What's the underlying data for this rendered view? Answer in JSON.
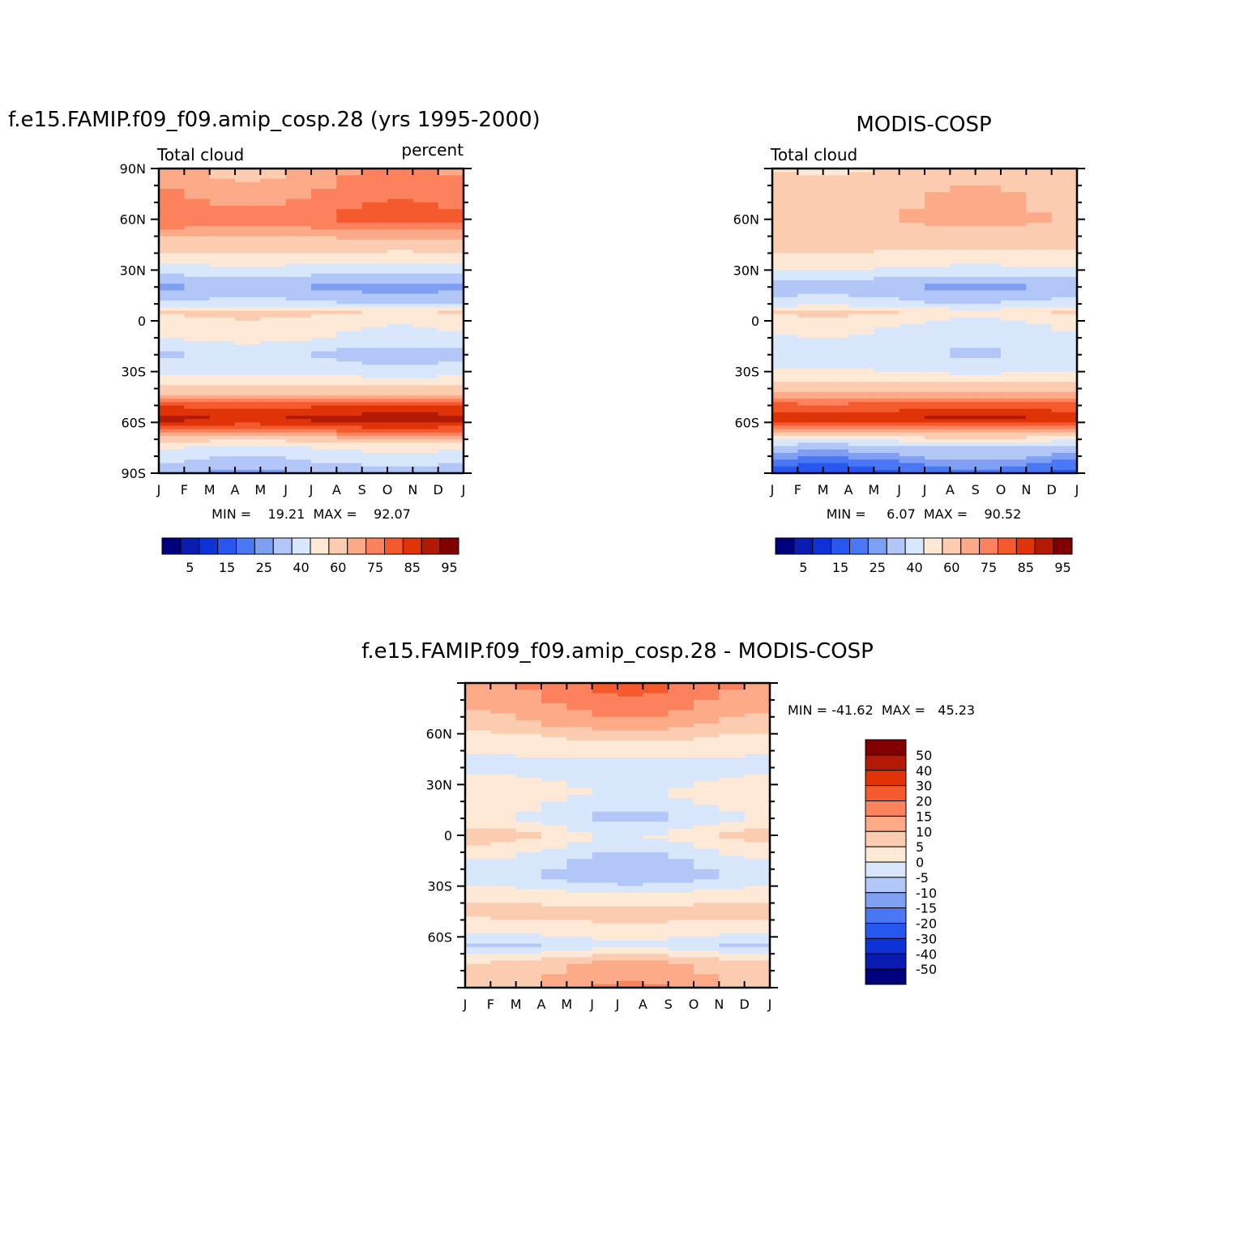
{
  "colors": {
    "seq": [
      "#00007f",
      "#0a1bb0",
      "#0d33d6",
      "#2857ef",
      "#4a78f5",
      "#7fa0f2",
      "#b2c7f7",
      "#d8e7fb",
      "#fee8d6",
      "#fcccb1",
      "#fcaa87",
      "#fb825c",
      "#f55a2f",
      "#e03408",
      "#b31a06",
      "#800000"
    ],
    "diff": [
      "#00007f",
      "#0a1bb0",
      "#0d33d6",
      "#2857ef",
      "#4a78f5",
      "#7fa0f2",
      "#b2c7f7",
      "#d8e7fb",
      "#fee8d6",
      "#fcccb1",
      "#fcaa87",
      "#fb825c",
      "#f55a2f",
      "#e03408",
      "#b31a06",
      "#800000"
    ]
  },
  "chart_data": [
    {
      "type": "heatmap",
      "title": "f.e15.FAMIP.f09_f09.amip_cosp.28 (yrs 1995-2000)",
      "left_label": "Total cloud",
      "right_label": "percent",
      "x_ticks": [
        "J",
        "F",
        "M",
        "A",
        "M",
        "J",
        "J",
        "A",
        "S",
        "O",
        "N",
        "D",
        "J"
      ],
      "y_ticks": [
        "90N",
        "60N",
        "30N",
        "0",
        "30S",
        "60S",
        "90S"
      ],
      "ylim": [
        -90,
        90
      ],
      "stats": "MIN =    19.21  MAX =    92.07",
      "colorbar_labels": [
        "5",
        "15",
        "25",
        "40",
        "60",
        "75",
        "85",
        "95"
      ],
      "levels": [
        5,
        10,
        15,
        20,
        25,
        30,
        40,
        50,
        60,
        70,
        75,
        80,
        85,
        90,
        95
      ],
      "profile": [
        {
          "lat": 90,
          "v": 72
        },
        {
          "lat": 75,
          "v": 76
        },
        {
          "lat": 60,
          "v": 80
        },
        {
          "lat": 45,
          "v": 66
        },
        {
          "lat": 30,
          "v": 45
        },
        {
          "lat": 20,
          "v": 28
        },
        {
          "lat": 10,
          "v": 42
        },
        {
          "lat": 5,
          "v": 62
        },
        {
          "lat": 0,
          "v": 55
        },
        {
          "lat": -10,
          "v": 50
        },
        {
          "lat": -20,
          "v": 38
        },
        {
          "lat": -30,
          "v": 46
        },
        {
          "lat": -40,
          "v": 63
        },
        {
          "lat": -50,
          "v": 84
        },
        {
          "lat": -58,
          "v": 92
        },
        {
          "lat": -66,
          "v": 78
        },
        {
          "lat": -75,
          "v": 50
        },
        {
          "lat": -90,
          "v": 32
        }
      ]
    },
    {
      "type": "heatmap",
      "title": "MODIS-COSP",
      "left_label": "Total cloud",
      "x_ticks": [
        "J",
        "F",
        "M",
        "A",
        "M",
        "J",
        "J",
        "A",
        "S",
        "O",
        "N",
        "D",
        "J"
      ],
      "y_ticks": [
        "60N",
        "30N",
        "0",
        "30S",
        "60S"
      ],
      "ylim": [
        -90,
        90
      ],
      "stats": "MIN =     6.07  MAX =    90.52",
      "colorbar_labels": [
        "5",
        "15",
        "25",
        "40",
        "60",
        "75",
        "85",
        "95"
      ],
      "levels": [
        5,
        10,
        15,
        20,
        25,
        30,
        40,
        50,
        60,
        70,
        75,
        80,
        85,
        90,
        95
      ],
      "profile": [
        {
          "lat": 90,
          "v": 62
        },
        {
          "lat": 75,
          "v": 68
        },
        {
          "lat": 60,
          "v": 70
        },
        {
          "lat": 45,
          "v": 64
        },
        {
          "lat": 30,
          "v": 48
        },
        {
          "lat": 20,
          "v": 30
        },
        {
          "lat": 10,
          "v": 44
        },
        {
          "lat": 5,
          "v": 60
        },
        {
          "lat": 0,
          "v": 52
        },
        {
          "lat": -10,
          "v": 46
        },
        {
          "lat": -20,
          "v": 42
        },
        {
          "lat": -30,
          "v": 50
        },
        {
          "lat": -40,
          "v": 66
        },
        {
          "lat": -50,
          "v": 82
        },
        {
          "lat": -58,
          "v": 90
        },
        {
          "lat": -66,
          "v": 70
        },
        {
          "lat": -75,
          "v": 35
        },
        {
          "lat": -90,
          "v": 18
        }
      ]
    },
    {
      "type": "heatmap",
      "title": "f.e15.FAMIP.f09_f09.amip_cosp.28 - MODIS-COSP",
      "x_ticks": [
        "J",
        "F",
        "M",
        "A",
        "M",
        "J",
        "J",
        "A",
        "S",
        "O",
        "N",
        "D",
        "J"
      ],
      "y_ticks": [
        "60N",
        "30N",
        "0",
        "30S",
        "60S"
      ],
      "ylim": [
        -90,
        90
      ],
      "stats": "MIN = -41.62  MAX =   45.23",
      "colorbar_labels": [
        "50",
        "40",
        "30",
        "20",
        "15",
        "10",
        "5",
        "0",
        "-5",
        "-10",
        "-15",
        "-20",
        "-30",
        "-40",
        "-50"
      ],
      "levels": [
        -50,
        -40,
        -30,
        -20,
        -15,
        -10,
        -5,
        0,
        5,
        10,
        15,
        20,
        30,
        40,
        50
      ],
      "profile": [
        {
          "lat": 90,
          "v": 18
        },
        {
          "lat": 75,
          "v": 14
        },
        {
          "lat": 65,
          "v": 10
        },
        {
          "lat": 55,
          "v": 3
        },
        {
          "lat": 40,
          "v": -2
        },
        {
          "lat": 25,
          "v": 2
        },
        {
          "lat": 10,
          "v": -3
        },
        {
          "lat": 0,
          "v": 4
        },
        {
          "lat": -15,
          "v": -4
        },
        {
          "lat": -25,
          "v": -6
        },
        {
          "lat": -35,
          "v": 2
        },
        {
          "lat": -45,
          "v": 7
        },
        {
          "lat": -55,
          "v": 3
        },
        {
          "lat": -65,
          "v": -4
        },
        {
          "lat": -75,
          "v": 8
        },
        {
          "lat": -90,
          "v": 12
        }
      ]
    }
  ]
}
